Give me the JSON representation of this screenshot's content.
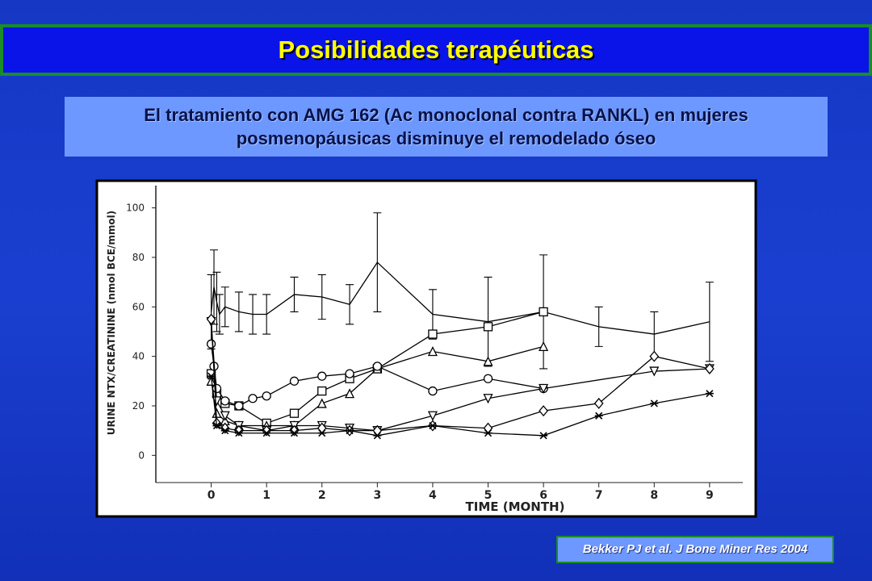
{
  "header": {
    "title": "Posibilidades terapéuticas"
  },
  "subtitle": "El tratamiento con AMG 162 (Ac monoclonal contra RANKL) en mujeres posmenopáusicas disminuye el remodelado óseo",
  "chart_data": {
    "type": "line",
    "x_label": "TIME (MONTH)",
    "y_label": "URINE NTX/CREATININE (nmol BCE/mmol)",
    "xlim": [
      -1,
      9.6
    ],
    "ylim": [
      -10,
      109
    ],
    "xticks": [
      0,
      1,
      2,
      3,
      4,
      5,
      6,
      7,
      8,
      9
    ],
    "yticks": [
      0,
      20,
      40,
      60,
      80,
      100
    ],
    "series": [
      {
        "marker": "none",
        "color": "#000000",
        "x": [
          0,
          0.05,
          0.1,
          0.15,
          0.25,
          0.5,
          0.75,
          1,
          1.5,
          2,
          2.5,
          3,
          4,
          5,
          6,
          7,
          8,
          9
        ],
        "values": [
          58,
          68,
          62,
          57,
          60,
          58,
          57,
          57,
          65,
          64,
          61,
          78,
          57,
          54,
          58,
          52,
          49,
          54
        ],
        "errors": [
          15,
          15,
          12,
          8,
          8,
          8,
          8,
          8,
          7,
          9,
          8,
          20,
          10,
          18,
          23,
          8,
          9,
          16
        ]
      },
      {
        "marker": "square",
        "color": "#000000",
        "x": [
          0,
          0.1,
          0.25,
          0.5,
          1,
          1.5,
          2,
          2.5,
          3,
          4,
          5,
          6
        ],
        "values": [
          33,
          25,
          21,
          20,
          13,
          17,
          26,
          31,
          35,
          49,
          52,
          58
        ]
      },
      {
        "marker": "triangle",
        "color": "#000000",
        "x": [
          0,
          0.1,
          0.25,
          0.5,
          1,
          1.5,
          2,
          2.5,
          3,
          4,
          5,
          6
        ],
        "values": [
          30,
          17,
          14,
          12,
          12,
          12,
          21,
          25,
          35,
          42,
          38,
          44
        ]
      },
      {
        "marker": "circle",
        "color": "#000000",
        "x": [
          0,
          0.05,
          0.1,
          0.25,
          0.5,
          0.75,
          1,
          1.5,
          2,
          2.5,
          3,
          4,
          5,
          6
        ],
        "values": [
          45,
          36,
          27,
          22,
          20,
          23,
          24,
          30,
          32,
          33,
          36,
          26,
          31,
          27
        ]
      },
      {
        "marker": "triangle-down",
        "color": "#000000",
        "x": [
          0,
          0.1,
          0.25,
          0.5,
          1,
          1.5,
          2,
          2.5,
          3,
          4,
          5,
          6,
          8,
          9
        ],
        "values": [
          54,
          22,
          16,
          12,
          10,
          12,
          12,
          11,
          10,
          16,
          23,
          27,
          34,
          35
        ]
      },
      {
        "marker": "diamond",
        "color": "#000000",
        "x": [
          0,
          0.1,
          0.25,
          0.5,
          1,
          1.5,
          2,
          2.5,
          3,
          4,
          5,
          6,
          7,
          8,
          9
        ],
        "values": [
          55,
          13,
          11,
          10,
          10,
          10,
          11,
          10,
          10,
          12,
          11,
          18,
          21,
          40,
          35
        ]
      },
      {
        "marker": "asterisk",
        "color": "#000000",
        "x": [
          0,
          0.1,
          0.25,
          0.5,
          1,
          1.5,
          2,
          2.5,
          3,
          4,
          5,
          6,
          7,
          8,
          9
        ],
        "values": [
          32,
          12,
          10,
          9,
          9,
          9,
          9,
          10,
          8,
          12,
          9,
          8,
          16,
          21,
          25
        ]
      }
    ]
  },
  "citation": "Bekker PJ et al. J Bone Miner Res 2004"
}
